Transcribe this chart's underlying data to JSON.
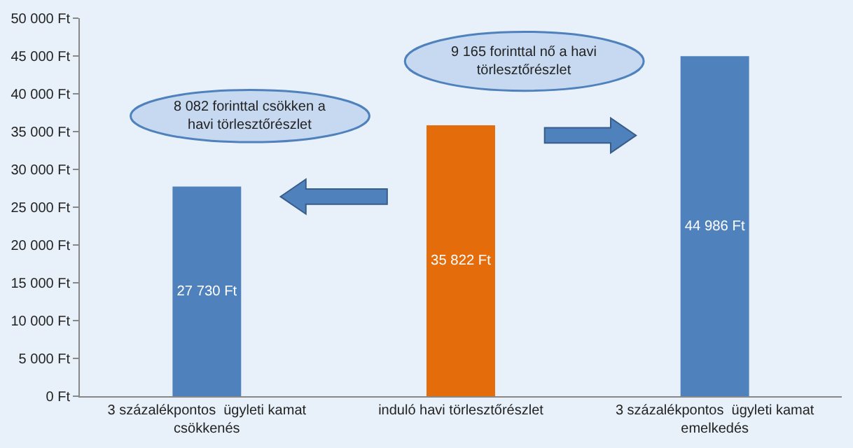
{
  "chart_data": {
    "type": "bar",
    "categories": [
      "3 százalékpontos  ügyleti kamat csökkenés",
      "induló havi törlesztőrészlet",
      "3 százalékpontos  ügyleti kamat emelkedés"
    ],
    "values": [
      27730,
      35822,
      44986
    ],
    "colors": [
      "#4f81bd",
      "#e46c0a",
      "#4f81bd"
    ],
    "value_labels": [
      "27 730 Ft",
      "35 822 Ft",
      "44 986 Ft"
    ],
    "ylim": [
      0,
      50000
    ],
    "yticks": [
      {
        "value": 0,
        "label": "0 Ft"
      },
      {
        "value": 5000,
        "label": "5 000 Ft"
      },
      {
        "value": 10000,
        "label": "10 000 Ft"
      },
      {
        "value": 15000,
        "label": "15 000 Ft"
      },
      {
        "value": 20000,
        "label": "20 000 Ft"
      },
      {
        "value": 25000,
        "label": "25 000 Ft"
      },
      {
        "value": 30000,
        "label": "30 000 Ft"
      },
      {
        "value": 35000,
        "label": "35 000 Ft"
      },
      {
        "value": 40000,
        "label": "40 000 Ft"
      },
      {
        "value": 45000,
        "label": "45 000 Ft"
      },
      {
        "value": 50000,
        "label": "50 000 Ft"
      }
    ],
    "grid": false,
    "legend": false,
    "annotations": [
      "8 082 forinttal csökken a havi törlesztőrészlet",
      "9 165 forinttal nő a havi törlesztőrészlet"
    ]
  }
}
